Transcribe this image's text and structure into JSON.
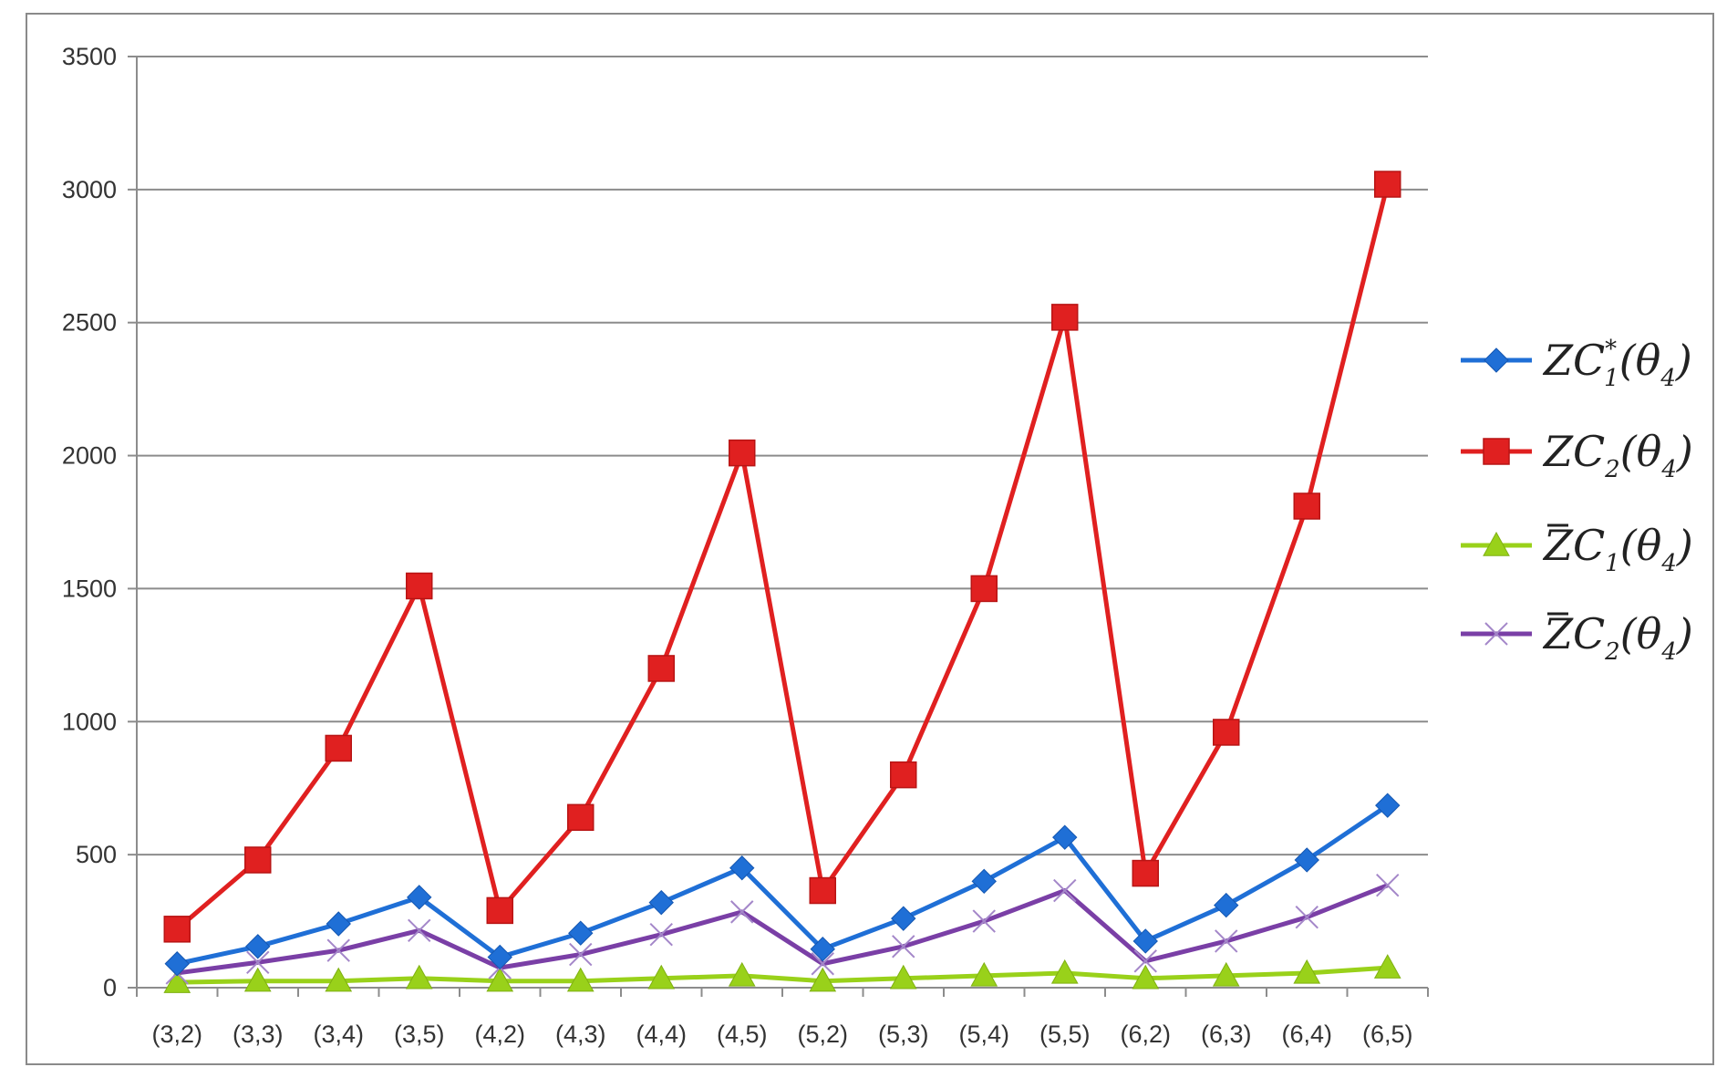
{
  "chart_data": {
    "type": "line",
    "title": "",
    "xlabel": "",
    "ylabel": "",
    "ylim": [
      0,
      3500
    ],
    "yticks": [
      "0",
      "500",
      "1000",
      "1500",
      "2000",
      "2500",
      "3000",
      "3500"
    ],
    "grid": true,
    "legend_position": "right",
    "categories": [
      "(3,2)",
      "(3,3)",
      "(3,4)",
      "(3,5)",
      "(4,2)",
      "(4,3)",
      "(4,4)",
      "(4,5)",
      "(5,2)",
      "(5,3)",
      "(5,4)",
      "(5,5)",
      "(6,2)",
      "(6,3)",
      "(6,4)",
      "(6,5)"
    ],
    "series": [
      {
        "name": "ZC*1(θ4)",
        "legend": {
          "overbar": false,
          "base": "ZC",
          "sup": "*",
          "sub": "1",
          "arg": "θ",
          "argsub": "4"
        },
        "color": "#1f6fd6",
        "marker": "diamond",
        "values": [
          90,
          155,
          240,
          340,
          115,
          205,
          320,
          450,
          145,
          260,
          400,
          565,
          175,
          310,
          480,
          685
        ]
      },
      {
        "name": "ZC2(θ4)",
        "legend": {
          "overbar": false,
          "base": "ZC",
          "sup": "",
          "sub": "2",
          "arg": "θ",
          "argsub": "4"
        },
        "color": "#e02020",
        "marker": "square",
        "values": [
          220,
          480,
          900,
          1510,
          290,
          640,
          1200,
          2010,
          365,
          800,
          1500,
          2520,
          430,
          960,
          1810,
          3020
        ]
      },
      {
        "name": "Z̄C1(θ4)",
        "legend": {
          "overbar": true,
          "base": "ZC",
          "sup": "",
          "sub": "1",
          "arg": "θ",
          "argsub": "4"
        },
        "color": "#99d11a",
        "marker": "triangle",
        "values": [
          20,
          25,
          25,
          35,
          25,
          25,
          35,
          45,
          25,
          35,
          45,
          55,
          35,
          45,
          55,
          75
        ]
      },
      {
        "name": "Z̄C2(θ4)",
        "legend": {
          "overbar": true,
          "base": "ZC",
          "sup": "",
          "sub": "2",
          "arg": "θ",
          "argsub": "4"
        },
        "color": "#7a3fa6",
        "marker": "x",
        "values": [
          55,
          95,
          140,
          215,
          75,
          125,
          200,
          285,
          90,
          155,
          250,
          365,
          100,
          175,
          265,
          385
        ]
      }
    ]
  }
}
